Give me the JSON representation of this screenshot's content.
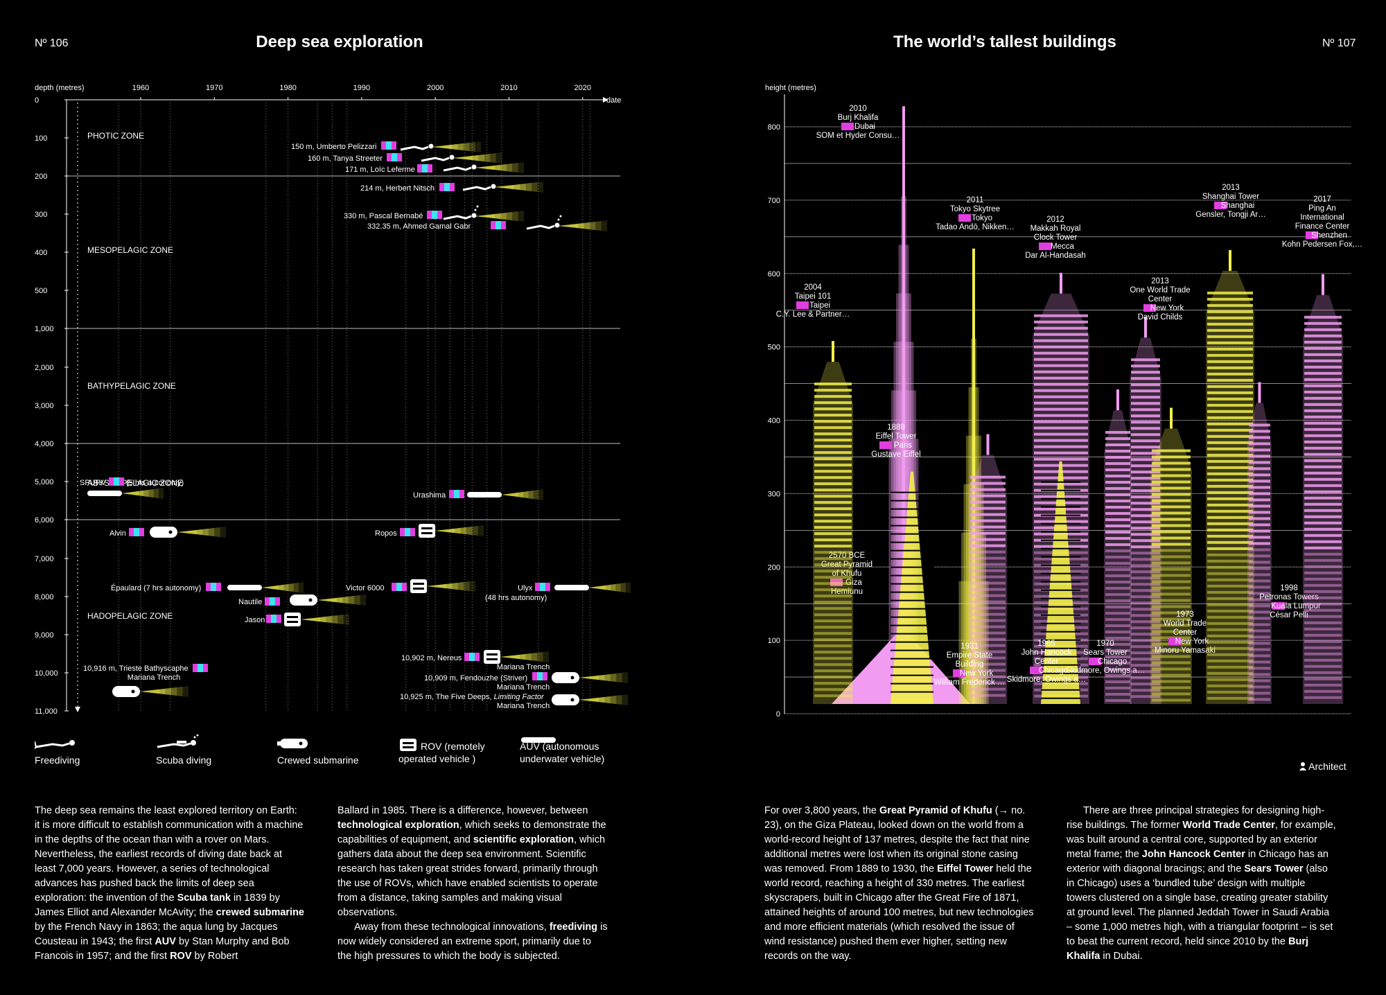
{
  "left": {
    "page_number": "Nº 106",
    "title": "Deep sea exploration",
    "legend": {
      "freediving": "Freediving",
      "scuba": "Scuba diving",
      "crewed": "Crewed submarine",
      "rov": "ROV (remotely operated vehicle )",
      "auv": "AUV (autonomous underwater vehicle)"
    },
    "text_col1": [
      {
        "t": "The deep sea remains the least explored territory on Earth: it is more difficult to establish communication with a machine in the depths of the ocean than with a rover on Mars. Nevertheless, the earliest records of diving date back at least 7,000 years. However, a series of technological advances has pushed back the limits of deep sea exploration: the invention of the "
      },
      {
        "t": "Scuba tank",
        "b": true
      },
      {
        "t": " in 1839 by James Elliot and Alexander McAvity; the "
      },
      {
        "t": "crewed submarine",
        "b": true
      },
      {
        "t": " by the French Navy in 1863; the aqua lung by Jacques Cousteau in 1943; the first "
      },
      {
        "t": "AUV",
        "b": true
      },
      {
        "t": " by Stan Murphy and Bob Francois in 1957; and the first "
      },
      {
        "t": "ROV",
        "b": true
      },
      {
        "t": " by Robert"
      }
    ],
    "text_col2": [
      {
        "t": "Ballard in 1985. There is a difference, however, between "
      },
      {
        "t": "technological exploration",
        "b": true
      },
      {
        "t": ", which seeks to demonstrate the capabilities of equipment, and "
      },
      {
        "t": "scientific exploration",
        "b": true
      },
      {
        "t": ", which gathers data about the deep sea environment. Scientific research has taken great strides forward, primarily through the use of ROVs, which have enabled scientists to operate from a distance, taking samples and making visual observations."
      }
    ],
    "text_col2b": [
      {
        "t": "Away from these technological innovations, "
      },
      {
        "t": "freediving",
        "b": true
      },
      {
        "t": " is now widely considered an extreme sport, primarily due to the high pressures to which the body is subjected."
      }
    ]
  },
  "right": {
    "page_number": "Nº 107",
    "title": "The world’s tallest buildings",
    "architect_legend": "Architect",
    "text_col1": [
      {
        "t": "For over 3,800 years, the "
      },
      {
        "t": "Great Pyramid of Khufu",
        "b": true
      },
      {
        "t": " (→ no. 23), on the Giza Plateau, looked down on the world from a world-record height of 137 metres, despite the fact that nine additional metres were lost when its original stone casing was removed. From 1889 to 1930, the "
      },
      {
        "t": "Eiffel Tower",
        "b": true
      },
      {
        "t": " held the world record, reaching a height of 330 metres. The earliest skyscrapers, built in Chicago after the Great Fire of 1871, attained heights of around 100 metres, but new technologies and more efficient materials (which resolved the issue of wind resistance) pushed them ever higher, setting new records on the way."
      }
    ],
    "text_col2": [
      {
        "t": "There are three principal strategies for designing high-rise buildings. The former "
      },
      {
        "t": "World Trade Center",
        "b": true
      },
      {
        "t": ", for example, was built around a central core, supported by an exterior metal frame; the "
      },
      {
        "t": "John Hancock Center",
        "b": true
      },
      {
        "t": " in Chicago has an exterior with diagonal bracings; and the "
      },
      {
        "t": "Sears Tower",
        "b": true
      },
      {
        "t": " (also in Chicago) uses a ‘bundled tube’ design with multiple towers clustered on a single base, creating greater stability at ground level. The planned Jeddah Tower in Saudi Arabia – some 1,000 metres high, with a triangular footprint – is set to beat the current record, held since 2010 by the "
      },
      {
        "t": "Burj Khalifa",
        "b": true
      },
      {
        "t": " in Dubai."
      }
    ]
  },
  "colors": {
    "pink": "#f19cf0",
    "yellow": "#f2ef4a",
    "flag_pink": "#e13ee0",
    "flag_cyan": "#3fe0f0"
  },
  "chart_data": [
    {
      "type": "scatter",
      "title": "Deep sea exploration",
      "xlabel": "date",
      "ylabel": "depth (metres)",
      "x_ticks": [
        "1960",
        "1970",
        "1980",
        "1990",
        "2000",
        "2010",
        "2020"
      ],
      "y_ticks": [
        "0",
        "100",
        "200",
        "300",
        "400",
        "500",
        "1,000",
        "2,000",
        "3,000",
        "4,000",
        "5,000",
        "6,000",
        "7,000",
        "8,000",
        "9,000",
        "10,000",
        "11,000"
      ],
      "zones": [
        "PHOTIC ZONE",
        "MESOPELAGIC ZONE",
        "BATHYPELAGIC ZONE",
        "ABYSSOPELAGIC ZONE",
        "HADOPELAGIC ZONE"
      ],
      "points": [
        {
          "label": "150 m, Umberto Pelizzari",
          "type": "freediving",
          "year": 1996,
          "depth": 150
        },
        {
          "label": "160 m, Tanya Streeter",
          "type": "freediving",
          "year": 2002,
          "depth": 160
        },
        {
          "label": "171 m, Loïc Leferme",
          "type": "freediving",
          "year": 2002,
          "depth": 171
        },
        {
          "label": "214 m, Herbert Nitsch",
          "type": "freediving",
          "year": 2007,
          "depth": 214
        },
        {
          "label": "330 m, Pascal Bernabé",
          "type": "scuba",
          "year": 2005,
          "depth": 330
        },
        {
          "label": "332.35 m, Ahmed Gamal Gabr",
          "type": "scuba",
          "year": 2014,
          "depth": 332
        },
        {
          "label": "SPURV",
          "note": "(5 hrs autonomy)",
          "type": "auv",
          "year": 1957,
          "depth": 3000
        },
        {
          "label": "Urashima",
          "type": "auv",
          "year": 2000,
          "depth": 3500
        },
        {
          "label": "Alvin",
          "type": "crewed",
          "year": 1964,
          "depth": 4500
        },
        {
          "label": "Ropos",
          "type": "rov",
          "year": 1986,
          "depth": 4500
        },
        {
          "label": "Épaulard (7 hrs autonomy)",
          "type": "auv",
          "year": 1980,
          "depth": 6000
        },
        {
          "label": "Victor 6000",
          "type": "rov",
          "year": 1999,
          "depth": 6000
        },
        {
          "label": "Ulyx",
          "note": "(48 hrs autonomy)",
          "type": "auv",
          "year": 2020,
          "depth": 6000
        },
        {
          "label": "Nautile",
          "type": "crewed",
          "year": 1984,
          "depth": 6000
        },
        {
          "label": "Jason",
          "type": "rov",
          "year": 1988,
          "depth": 6500
        },
        {
          "label": "10,916 m, Trieste Bathyscaphe",
          "place": "Mariana Trench",
          "type": "crewed",
          "year": 1960,
          "depth": 10916
        },
        {
          "label": "10,902 m, Nereus",
          "place": "Mariana Trench",
          "type": "rov",
          "year": 2009,
          "depth": 10902
        },
        {
          "label": "10,909 m, Fendouzhe (Striver)",
          "place": "Mariana Trench",
          "type": "crewed",
          "year": 2020,
          "depth": 10909
        },
        {
          "label": "10,925 m, The Five Deeps, ",
          "label_italic": "Limiting Factor",
          "place": "Mariana Trench",
          "type": "crewed",
          "year": 2020,
          "depth": 10925
        }
      ]
    },
    {
      "type": "bar",
      "title": "The world’s tallest buildings",
      "ylabel": "height (metres)",
      "y_ticks": [
        "0",
        "100",
        "200",
        "300",
        "400",
        "500",
        "600",
        "700",
        "800"
      ],
      "ylim": [
        0,
        800
      ],
      "buildings": [
        {
          "year": "2570 BCE",
          "name": "Great Pyramid of Khufu",
          "city": "Giza",
          "architect": "Hemiunu",
          "height": 137,
          "color": "pink"
        },
        {
          "year": "1889",
          "name": "Eiffel Tower",
          "city": "Paris",
          "architect": "Gustave Eiffel",
          "height": 330,
          "color": "yellow"
        },
        {
          "year": "1931",
          "name": "Empire State Building",
          "city": "New York",
          "architect": "William Frederick Lamb",
          "height": 381,
          "color": "pink"
        },
        {
          "year": "1965",
          "name": "John Hancock Center",
          "city": "Chicago",
          "architect": "Skidmore, Owings and Merrill, Bruce Graham",
          "height": 344,
          "color": "yellow"
        },
        {
          "year": "1970",
          "name": "Sears Tower",
          "city": "Chicago",
          "architect": "Skidmore, Owings and Merrill, Bruce Graham",
          "height": 442,
          "color": "pink"
        },
        {
          "year": "1973",
          "name": "World Trade Center",
          "city": "New York",
          "architect": "Minoru Yamasaki",
          "height": 417,
          "color": "yellow"
        },
        {
          "year": "1998",
          "name": "Petronas Towers",
          "city": "Kuala Lumpur",
          "architect": "César Pelli",
          "height": 452,
          "color": "pink"
        },
        {
          "year": "2004",
          "name": "Taipei 101",
          "city": "Taipei",
          "architect": "C.Y. Lee & Partners Architects",
          "height": 508,
          "color": "yellow"
        },
        {
          "year": "2010",
          "name": "Burj Khalifa",
          "city": "Dubai",
          "architect": "SOM et Hyder Consulting",
          "height": 828,
          "color": "pink"
        },
        {
          "year": "2011",
          "name": "Tokyo Skytree",
          "city": "Tokyo",
          "architect": "Tadao Andō, Nikken Sekkei",
          "height": 634,
          "color": "yellow"
        },
        {
          "year": "2012",
          "name": "Makkah Royal Clock Tower",
          "city": "Mecca",
          "architect": "Dar Al-Handasah",
          "height": 601,
          "color": "pink"
        },
        {
          "year": "2013",
          "name": "One World Trade Center",
          "city": "New York",
          "architect": "David Childs",
          "height": 541,
          "color": "pink"
        },
        {
          "year": "2013",
          "name": "Shanghai Tower",
          "city": "Shanghai",
          "architect": "Gensler, Tongji Architectural Design",
          "height": 632,
          "color": "yellow"
        },
        {
          "year": "2017",
          "name": "Ping An International Finance Center",
          "city": "Shenzhen",
          "architect": "Kohn Pedersen Fox, CCDI Group",
          "height": 599,
          "color": "pink"
        }
      ]
    }
  ]
}
